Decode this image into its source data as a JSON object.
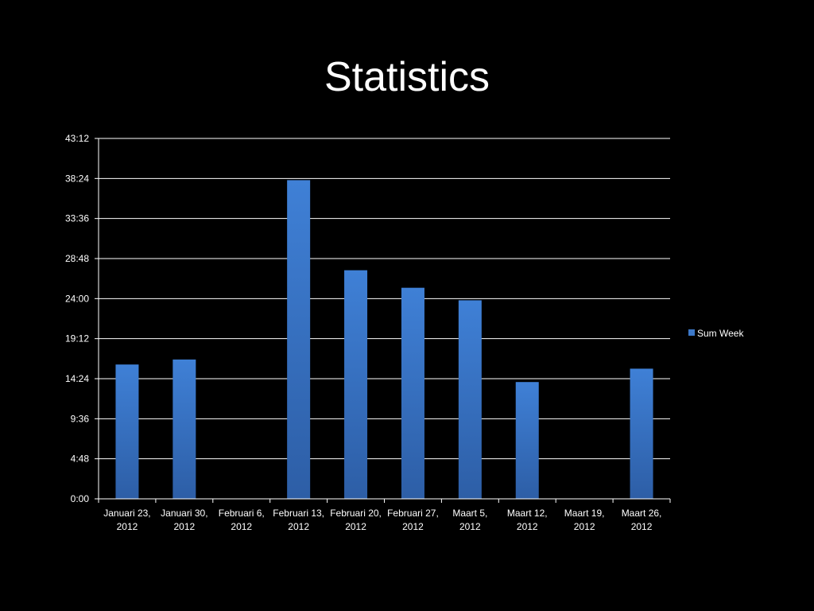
{
  "chart_data": {
    "type": "bar",
    "title": "Statistics",
    "xlabel": "",
    "ylabel": "",
    "categories": [
      "Januari 23, 2012",
      "Januari 30, 2012",
      "Februari 6, 2012",
      "Februari 13, 2012",
      "Februari 20, 2012",
      "Februari 27, 2012",
      "Maart 5, 2012",
      "Maart 12, 2012",
      "Maart 19, 2012",
      "Maart 26, 2012"
    ],
    "y_unit": "hours",
    "y_ticks": [
      "0:00",
      "4:48",
      "9:36",
      "14:24",
      "19:12",
      "24:00",
      "28:48",
      "33:36",
      "38:24",
      "43:12"
    ],
    "ylim": [
      0,
      43.2
    ],
    "grid": true,
    "legend_position": "right",
    "series": [
      {
        "name": "Sum Week",
        "color": "#3c78c8",
        "values": [
          16.1,
          16.7,
          0,
          38.2,
          27.4,
          25.3,
          23.8,
          14.0,
          0,
          15.6
        ]
      }
    ]
  }
}
